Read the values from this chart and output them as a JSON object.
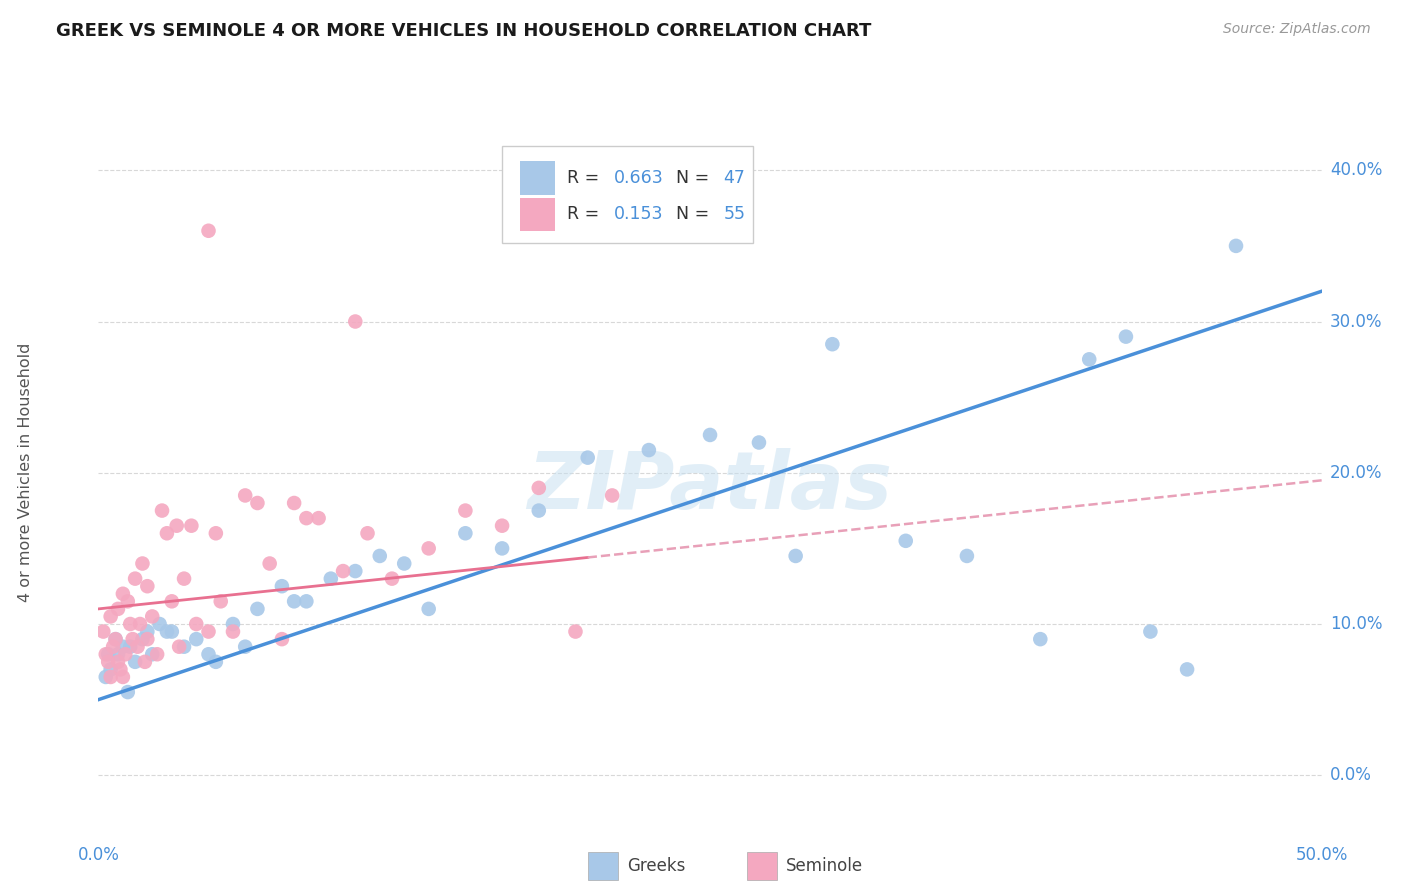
{
  "title": "GREEK VS SEMINOLE 4 OR MORE VEHICLES IN HOUSEHOLD CORRELATION CHART",
  "source": "Source: ZipAtlas.com",
  "ylabel": "4 or more Vehicles in Household",
  "xlim": [
    0.0,
    50.0
  ],
  "ylim": [
    -3.0,
    43.0
  ],
  "yticks": [
    0.0,
    10.0,
    20.0,
    30.0,
    40.0
  ],
  "greek_color": "#a8c8e8",
  "seminole_color": "#f4a8c0",
  "greek_line_color": "#4a90d9",
  "seminole_line_color": "#e87090",
  "seminole_dashed_color": "#e8a0b8",
  "r_greek": 0.663,
  "n_greek": 47,
  "r_seminole": 0.153,
  "n_seminole": 55,
  "watermark": "ZIPatlas",
  "greek_line_x0": 0.0,
  "greek_line_y0": 5.0,
  "greek_line_x1": 50.0,
  "greek_line_y1": 32.0,
  "seminole_line_x0": 0.0,
  "seminole_line_y0": 11.0,
  "seminole_line_x1": 50.0,
  "seminole_line_y1": 19.5,
  "seminole_solid_end": 20.0,
  "greek_scatter_x": [
    0.3,
    0.5,
    0.8,
    1.0,
    1.2,
    1.5,
    1.8,
    2.0,
    2.2,
    2.5,
    3.0,
    3.5,
    4.0,
    4.5,
    5.5,
    6.5,
    7.5,
    8.5,
    9.5,
    10.5,
    11.5,
    12.5,
    13.5,
    15.0,
    16.5,
    18.0,
    20.0,
    22.5,
    25.0,
    27.0,
    30.0,
    33.0,
    35.5,
    38.5,
    40.5,
    43.0,
    44.5,
    46.5,
    0.4,
    0.7,
    1.3,
    2.8,
    4.8,
    6.0,
    8.0,
    28.5,
    42.0
  ],
  "greek_scatter_y": [
    6.5,
    7.0,
    8.0,
    8.5,
    5.5,
    7.5,
    9.0,
    9.5,
    8.0,
    10.0,
    9.5,
    8.5,
    9.0,
    8.0,
    10.0,
    11.0,
    12.5,
    11.5,
    13.0,
    13.5,
    14.5,
    14.0,
    11.0,
    16.0,
    15.0,
    17.5,
    21.0,
    21.5,
    22.5,
    22.0,
    28.5,
    15.5,
    14.5,
    9.0,
    27.5,
    9.5,
    7.0,
    35.0,
    8.0,
    9.0,
    8.5,
    9.5,
    7.5,
    8.5,
    11.5,
    14.5,
    29.0
  ],
  "seminole_scatter_x": [
    0.2,
    0.3,
    0.4,
    0.5,
    0.6,
    0.7,
    0.8,
    0.9,
    1.0,
    1.1,
    1.2,
    1.4,
    1.5,
    1.6,
    1.7,
    1.8,
    1.9,
    2.0,
    2.2,
    2.4,
    2.6,
    2.8,
    3.0,
    3.3,
    3.5,
    3.8,
    4.0,
    4.5,
    5.0,
    5.5,
    6.0,
    7.0,
    7.5,
    8.0,
    9.0,
    10.0,
    11.0,
    12.0,
    13.5,
    15.0,
    16.5,
    18.0,
    19.5,
    21.0,
    0.5,
    0.8,
    1.3,
    2.0,
    3.2,
    4.8,
    6.5,
    8.5,
    4.5,
    10.5,
    1.0
  ],
  "seminole_scatter_y": [
    9.5,
    8.0,
    7.5,
    10.5,
    8.5,
    9.0,
    11.0,
    7.0,
    12.0,
    8.0,
    11.5,
    9.0,
    13.0,
    8.5,
    10.0,
    14.0,
    7.5,
    12.5,
    10.5,
    8.0,
    17.5,
    16.0,
    11.5,
    8.5,
    13.0,
    16.5,
    10.0,
    9.5,
    11.5,
    9.5,
    18.5,
    14.0,
    9.0,
    18.0,
    17.0,
    13.5,
    16.0,
    13.0,
    15.0,
    17.5,
    16.5,
    19.0,
    9.5,
    18.5,
    6.5,
    7.5,
    10.0,
    9.0,
    16.5,
    16.0,
    18.0,
    17.0,
    36.0,
    30.0,
    6.5
  ],
  "background_color": "#ffffff",
  "grid_color": "#d8d8d8"
}
